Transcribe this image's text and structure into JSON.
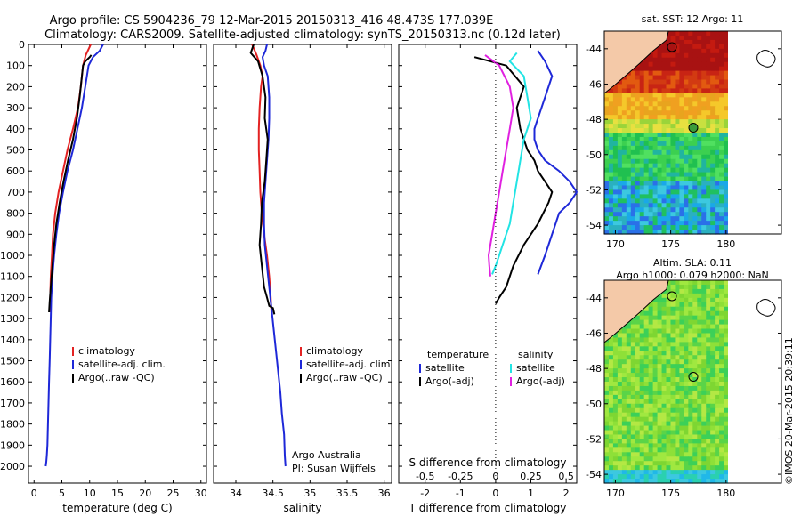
{
  "header": {
    "line1": "Argo profile: CS 5904236_79 12-Mar-2015 20150313_416 48.473S 177.039E",
    "line2": "Climatology: CARS2009. Satellite-adjusted climatology: synTS_20150313.nc (0.12d later)"
  },
  "colors": {
    "climatology": "#e32222",
    "satellite": "#1e28d8",
    "argo": "#000000",
    "salinity_sat": "#22e4e4",
    "salinity_argo": "#e020e0",
    "land": "#f4c9a8",
    "float_marker": "#3a9b3a"
  },
  "chart_data": [
    {
      "type": "line",
      "id": "temperature",
      "xlabel": "temperature (deg C)",
      "ylabel": "",
      "xlim": [
        -1,
        31
      ],
      "ylim": [
        2080,
        0
      ],
      "xticks": [
        0,
        5,
        10,
        15,
        20,
        25,
        30
      ],
      "yticks": [
        0,
        100,
        200,
        300,
        400,
        500,
        600,
        700,
        800,
        900,
        1000,
        1100,
        1200,
        1300,
        1400,
        1500,
        1600,
        1700,
        1800,
        1900,
        2000
      ],
      "legend": [
        "climatology",
        "satellite-adj. clim.",
        "Argo(..raw -QC)"
      ],
      "series": [
        {
          "name": "climatology",
          "x": [
            10.2,
            9.3,
            8.8,
            8.4,
            7.9,
            7.0,
            6.0,
            5.2,
            4.4,
            3.8,
            3.4,
            3.2,
            3.0,
            2.9,
            2.8
          ],
          "y": [
            0,
            50,
            100,
            200,
            300,
            400,
            500,
            600,
            700,
            800,
            900,
            1000,
            1100,
            1200,
            1270
          ]
        },
        {
          "name": "satellite-adj. clim.",
          "x": [
            12.4,
            11.8,
            10.6,
            9.8,
            9.2,
            8.6,
            7.8,
            7.0,
            6.0,
            5.2,
            4.5,
            4.0,
            3.6,
            3.3,
            3.1,
            3.0,
            2.9,
            2.8,
            2.7,
            2.6,
            2.5,
            2.4,
            2.3,
            2.2,
            2.1
          ],
          "y": [
            0,
            30,
            60,
            100,
            200,
            300,
            400,
            500,
            600,
            700,
            800,
            900,
            1000,
            1100,
            1200,
            1300,
            1400,
            1500,
            1600,
            1700,
            1800,
            1900,
            1950,
            1980,
            2000
          ]
        },
        {
          "name": "Argo(..raw -QC)",
          "x": [
            10.3,
            10.0,
            9.2,
            8.8,
            8.6,
            8.2,
            7.7,
            7.0,
            6.1,
            5.3,
            4.6,
            4.0,
            3.6,
            3.3,
            3.0,
            2.8,
            2.7
          ],
          "y": [
            50,
            60,
            80,
            100,
            150,
            250,
            350,
            450,
            550,
            650,
            750,
            850,
            950,
            1050,
            1150,
            1220,
            1270
          ]
        }
      ]
    },
    {
      "type": "line",
      "id": "salinity",
      "xlabel": "salinity",
      "ylabel": "",
      "xlim": [
        33.7,
        36.1
      ],
      "ylim": [
        2080,
        0
      ],
      "xticks": [
        34,
        34.5,
        35,
        35.5,
        36
      ],
      "legend": [
        "climatology",
        "satellite-adj. clim.",
        "Argo(..raw -QC)"
      ],
      "annotation": [
        "Argo Australia",
        "PI: Susan Wijffels"
      ],
      "series": [
        {
          "name": "climatology",
          "x": [
            34.22,
            34.28,
            34.33,
            34.36,
            34.34,
            34.32,
            34.31,
            34.31,
            34.32,
            34.33,
            34.35,
            34.38,
            34.42,
            34.45,
            34.47,
            34.48
          ],
          "y": [
            0,
            50,
            100,
            150,
            200,
            300,
            400,
            500,
            600,
            700,
            800,
            900,
            1000,
            1100,
            1200,
            1270
          ]
        },
        {
          "name": "satellite-adj. clim.",
          "x": [
            34.42,
            34.4,
            34.36,
            34.38,
            34.43,
            34.45,
            34.45,
            34.44,
            34.42,
            34.4,
            34.38,
            34.38,
            34.39,
            34.42,
            34.45,
            34.48,
            34.51,
            34.54,
            34.57,
            34.6,
            34.62,
            34.65,
            34.66,
            34.67
          ],
          "y": [
            0,
            30,
            60,
            100,
            150,
            250,
            350,
            450,
            550,
            650,
            750,
            850,
            950,
            1050,
            1150,
            1250,
            1350,
            1450,
            1550,
            1650,
            1750,
            1850,
            1950,
            2000
          ]
        },
        {
          "name": "Argo(..raw -QC)",
          "x": [
            34.24,
            34.2,
            34.3,
            34.36,
            34.4,
            34.39,
            34.43,
            34.41,
            34.39,
            34.35,
            34.34,
            34.32,
            34.35,
            34.38,
            34.42,
            34.45,
            34.5,
            34.52
          ],
          "y": [
            0,
            40,
            80,
            150,
            250,
            350,
            450,
            550,
            650,
            750,
            850,
            950,
            1050,
            1150,
            1200,
            1240,
            1250,
            1280
          ]
        }
      ]
    },
    {
      "type": "line",
      "id": "difference",
      "xlabel": "T difference from climatology",
      "xlabel_top": "S difference from climatology",
      "xlim": [
        -2.75,
        2.3
      ],
      "ylim": [
        2080,
        0
      ],
      "xticks": [
        -2,
        -1,
        0,
        1,
        2
      ],
      "xticks_top": [
        "-0.5",
        "-0.25",
        "0",
        "0.25",
        "0.5"
      ],
      "legend_left": {
        "title": "temperature",
        "items": [
          "satellite",
          "Argo(-adj)"
        ]
      },
      "legend_right": {
        "title": "salinity",
        "items": [
          "satellite",
          "Argo(-adj)"
        ]
      },
      "series": [
        {
          "name": "T satellite",
          "x": [
            1.2,
            1.4,
            1.6,
            1.4,
            1.2,
            1.1,
            1.1,
            1.2,
            1.4,
            1.8,
            2.1,
            2.3,
            2.1,
            1.8,
            1.6,
            1.4,
            1.2
          ],
          "y": [
            30,
            80,
            150,
            250,
            350,
            400,
            450,
            500,
            550,
            600,
            650,
            700,
            750,
            800,
            900,
            1000,
            1090
          ]
        },
        {
          "name": "T Argo(-adj)",
          "x": [
            -0.6,
            0.3,
            0.8,
            0.6,
            0.7,
            0.9,
            1.1,
            1.2,
            1.4,
            1.6,
            1.5,
            1.2,
            0.8,
            0.5,
            0.3,
            0.1,
            0.0
          ],
          "y": [
            60,
            100,
            200,
            300,
            400,
            500,
            550,
            600,
            650,
            700,
            750,
            850,
            950,
            1050,
            1150,
            1200,
            1230
          ]
        },
        {
          "name": "S satellite",
          "x": [
            0.6,
            0.4,
            0.8,
            0.9,
            1.0,
            0.8,
            0.7,
            0.6,
            0.5,
            0.4,
            0.3,
            0.2,
            0.1,
            0.0,
            -0.1
          ],
          "y": [
            40,
            80,
            150,
            250,
            350,
            450,
            550,
            650,
            750,
            850,
            900,
            950,
            1000,
            1050,
            1090
          ]
        },
        {
          "name": "S Argo(-adj)",
          "x": [
            -0.3,
            0.1,
            0.4,
            0.5,
            0.4,
            0.3,
            0.2,
            0.1,
            0.0,
            -0.1,
            -0.15,
            -0.2,
            -0.18,
            -0.15
          ],
          "y": [
            50,
            100,
            200,
            300,
            400,
            500,
            600,
            700,
            800,
            900,
            950,
            1000,
            1050,
            1100
          ]
        }
      ]
    },
    {
      "type": "heatmap",
      "id": "sst_map",
      "title": "sat. SST: 12 Argo: 11",
      "xticks": [
        "170",
        "175",
        "180"
      ],
      "yticks": [
        "-44",
        "-46",
        "-48",
        "-50",
        "-52",
        "-54"
      ],
      "xlim": [
        169,
        185
      ],
      "ylim": [
        -54.5,
        -43
      ],
      "float": {
        "lon": 177.039,
        "lat": -48.473
      }
    },
    {
      "type": "heatmap",
      "id": "sla_map",
      "title": "Altim. SLA: 0.11",
      "subtitle": "Argo h1000: 0.079 h2000: NaN",
      "xticks": [
        "170",
        "175",
        "180"
      ],
      "yticks": [
        "-44",
        "-46",
        "-48",
        "-50",
        "-52",
        "-54"
      ],
      "xlim": [
        169,
        185
      ],
      "ylim": [
        -54.5,
        -43
      ],
      "float": {
        "lon": 177.039,
        "lat": -48.473
      }
    }
  ],
  "footer": {
    "credit": "©IMOS 20-Mar-2015 20:39:11"
  }
}
